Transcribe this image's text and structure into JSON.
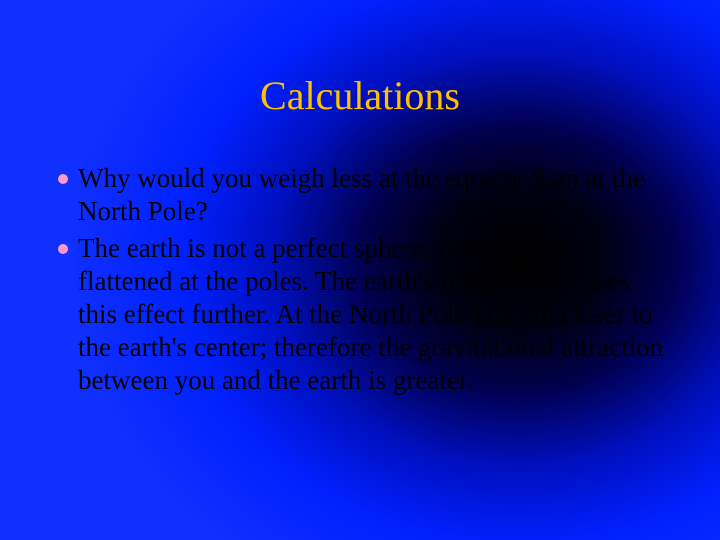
{
  "slide": {
    "title": "Calculations",
    "title_color": "#ffc000",
    "title_fontsize": 40,
    "background": {
      "type": "radial-gradient",
      "center": "72% 48%",
      "stops": [
        "#000000",
        "#000050",
        "#0020ff",
        "#1030ff"
      ]
    },
    "bullets": [
      {
        "text": "Why would you weigh less at the equator than at the North Pole?",
        "dot_color": "#ff99cc"
      },
      {
        "text": "The earth is not a perfect sphere. It is slightly flattened at the poles. The earth's rotation increases this effect further. At the North Pole you are closer to the earth's center; therefore the gravitational attraction between you and the earth is greater.",
        "dot_color": "#ff99cc"
      }
    ],
    "body_fontsize": 27,
    "body_color": "#000000"
  }
}
